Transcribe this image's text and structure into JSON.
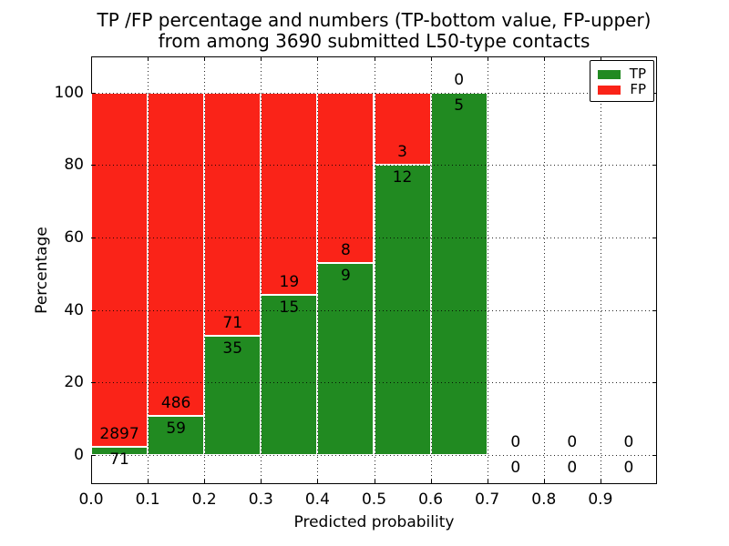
{
  "figure": {
    "title_line1": "TP /FP percentage and numbers (TP-bottom value, FP-upper)",
    "title_line2": "from among 3690 submitted L50-type contacts"
  },
  "chart_data": {
    "type": "bar",
    "stacked": true,
    "normalized_to_percent": true,
    "title": "TP /FP percentage and numbers (TP-bottom value, FP-upper)\nfrom among 3690 submitted L50-type contacts",
    "total_submitted_contacts": 3690,
    "xlabel": "Predicted probability",
    "ylabel": "Percentage",
    "xlim": [
      0.0,
      1.0
    ],
    "ylim": [
      -8,
      110
    ],
    "xticks": [
      {
        "value": 0.0,
        "label": "0.0"
      },
      {
        "value": 0.1,
        "label": "0.1"
      },
      {
        "value": 0.2,
        "label": "0.2"
      },
      {
        "value": 0.3,
        "label": "0.3"
      },
      {
        "value": 0.4,
        "label": "0.4"
      },
      {
        "value": 0.5,
        "label": "0.5"
      },
      {
        "value": 0.6,
        "label": "0.6"
      },
      {
        "value": 0.7,
        "label": "0.7"
      },
      {
        "value": 0.8,
        "label": "0.8"
      },
      {
        "value": 0.9,
        "label": "0.9"
      }
    ],
    "yticks": [
      {
        "value": 0,
        "label": "0"
      },
      {
        "value": 20,
        "label": "20"
      },
      {
        "value": 40,
        "label": "40"
      },
      {
        "value": 60,
        "label": "60"
      },
      {
        "value": 80,
        "label": "80"
      },
      {
        "value": 100,
        "label": "100"
      }
    ],
    "grid": "dotted",
    "colors": {
      "tp": "#218a21",
      "fp": "#fa2318",
      "bar_edge": "#ffffff"
    },
    "legend": {
      "position": "upper-right",
      "entries": [
        {
          "label": "TP",
          "color": "#218a21"
        },
        {
          "label": "FP",
          "color": "#fa2318"
        }
      ]
    },
    "bins": [
      {
        "range": [
          0.0,
          0.1
        ],
        "tp": 71,
        "fp": 2897,
        "tp_percent": 2.4,
        "fp_percent": 97.6
      },
      {
        "range": [
          0.1,
          0.2
        ],
        "tp": 59,
        "fp": 486,
        "tp_percent": 10.8,
        "fp_percent": 89.2
      },
      {
        "range": [
          0.2,
          0.3
        ],
        "tp": 35,
        "fp": 71,
        "tp_percent": 33.0,
        "fp_percent": 67.0
      },
      {
        "range": [
          0.3,
          0.4
        ],
        "tp": 15,
        "fp": 19,
        "tp_percent": 44.1,
        "fp_percent": 55.9
      },
      {
        "range": [
          0.4,
          0.5
        ],
        "tp": 9,
        "fp": 8,
        "tp_percent": 52.9,
        "fp_percent": 47.1
      },
      {
        "range": [
          0.5,
          0.6
        ],
        "tp": 12,
        "fp": 3,
        "tp_percent": 80.0,
        "fp_percent": 20.0
      },
      {
        "range": [
          0.6,
          0.7
        ],
        "tp": 5,
        "fp": 0,
        "tp_percent": 100.0,
        "fp_percent": 0.0
      },
      {
        "range": [
          0.7,
          0.8
        ],
        "tp": 0,
        "fp": 0,
        "tp_percent": null,
        "fp_percent": null
      },
      {
        "range": [
          0.8,
          0.9
        ],
        "tp": 0,
        "fp": 0,
        "tp_percent": null,
        "fp_percent": null
      },
      {
        "range": [
          0.9,
          1.0
        ],
        "tp": 0,
        "fp": 0,
        "tp_percent": null,
        "fp_percent": null
      }
    ]
  }
}
